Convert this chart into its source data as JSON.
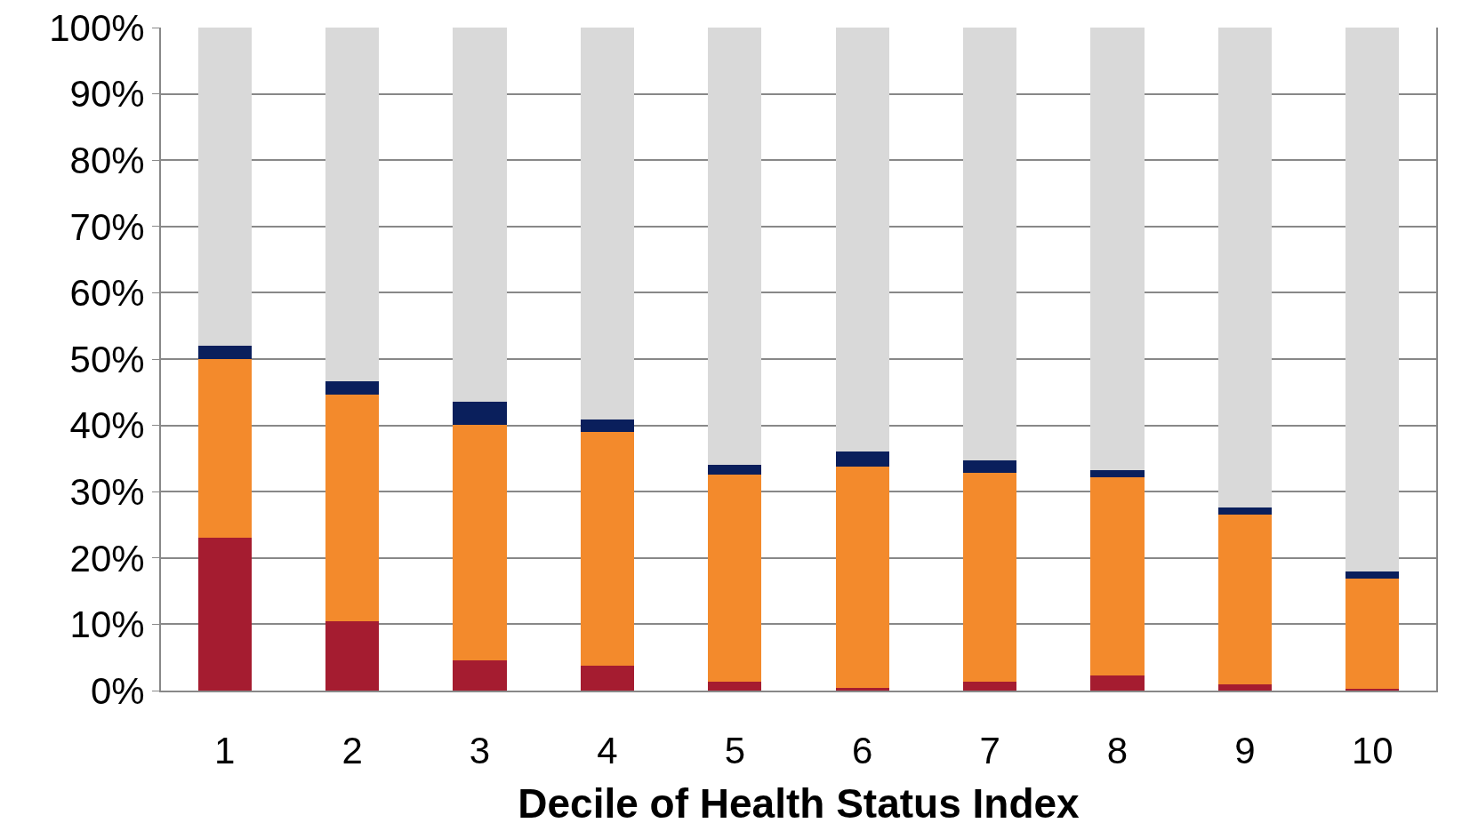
{
  "chart_data": {
    "type": "bar",
    "stacked": true,
    "xlabel": "Decile of Health Status Index",
    "categories": [
      "1",
      "2",
      "3",
      "4",
      "5",
      "6",
      "7",
      "8",
      "9",
      "10"
    ],
    "series": [
      {
        "color": "#a51c30",
        "values": [
          23,
          10.4,
          4.6,
          3.8,
          1.4,
          0.4,
          1.3,
          2.3,
          1.0,
          0.3
        ]
      },
      {
        "color": "#f38a2c",
        "values": [
          27,
          34.3,
          35.5,
          35.2,
          31.2,
          33.4,
          31.5,
          29.9,
          25.6,
          16.6
        ]
      },
      {
        "color": "#0a1f5c",
        "values": [
          2,
          1.9,
          3.4,
          1.9,
          1.4,
          2.3,
          1.9,
          1.0,
          1.0,
          1.0
        ]
      },
      {
        "color": "#d9d9d9",
        "values": [
          48,
          53.4,
          56.5,
          59.1,
          66.0,
          63.9,
          65.3,
          66.8,
          72.4,
          82.1
        ]
      }
    ],
    "ylim": [
      0,
      100
    ],
    "yticks": [
      {
        "value": 0,
        "label": "0%"
      },
      {
        "value": 10,
        "label": "10%"
      },
      {
        "value": 20,
        "label": "20%"
      },
      {
        "value": 30,
        "label": "30%"
      },
      {
        "value": 40,
        "label": "40%"
      },
      {
        "value": 50,
        "label": "50%"
      },
      {
        "value": 60,
        "label": "60%"
      },
      {
        "value": 70,
        "label": "70%"
      },
      {
        "value": 80,
        "label": "80%"
      },
      {
        "value": 90,
        "label": "90%"
      },
      {
        "value": 100,
        "label": "100%"
      }
    ],
    "grid": "y"
  }
}
